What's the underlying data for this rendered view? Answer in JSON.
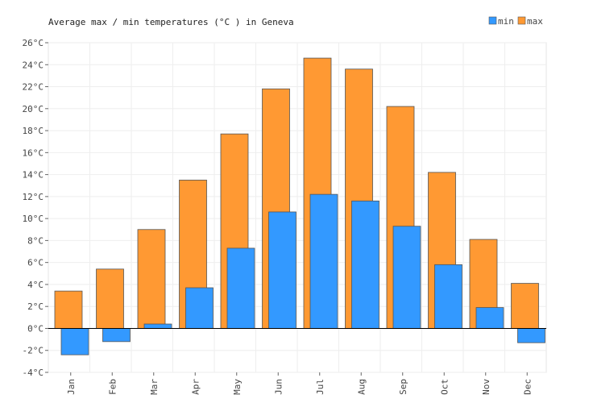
{
  "chart_data": {
    "type": "bar",
    "title": "Average max / min temperatures (°C ) in Geneva",
    "xlabel": "",
    "ylabel": "",
    "ylim": [
      -4,
      26
    ],
    "y_ticks": [
      -4,
      -2,
      0,
      2,
      4,
      6,
      8,
      10,
      12,
      14,
      16,
      18,
      20,
      22,
      24,
      26
    ],
    "y_tick_suffix": "°C",
    "grid": true,
    "legend_position": "top-right",
    "categories": [
      "Jan",
      "Feb",
      "Mar",
      "Apr",
      "May",
      "Jun",
      "Jul",
      "Aug",
      "Sep",
      "Oct",
      "Nov",
      "Dec"
    ],
    "series": [
      {
        "name": "max",
        "color": "#ff9933",
        "values": [
          3.4,
          5.4,
          9.0,
          13.5,
          17.7,
          21.8,
          24.6,
          23.6,
          20.2,
          14.2,
          8.1,
          4.1
        ]
      },
      {
        "name": "min",
        "color": "#3399ff",
        "values": [
          -2.4,
          -1.2,
          0.4,
          3.7,
          7.3,
          10.6,
          12.2,
          11.6,
          9.3,
          5.8,
          1.9,
          -1.3
        ]
      }
    ],
    "legend_order": [
      "min",
      "max"
    ]
  }
}
